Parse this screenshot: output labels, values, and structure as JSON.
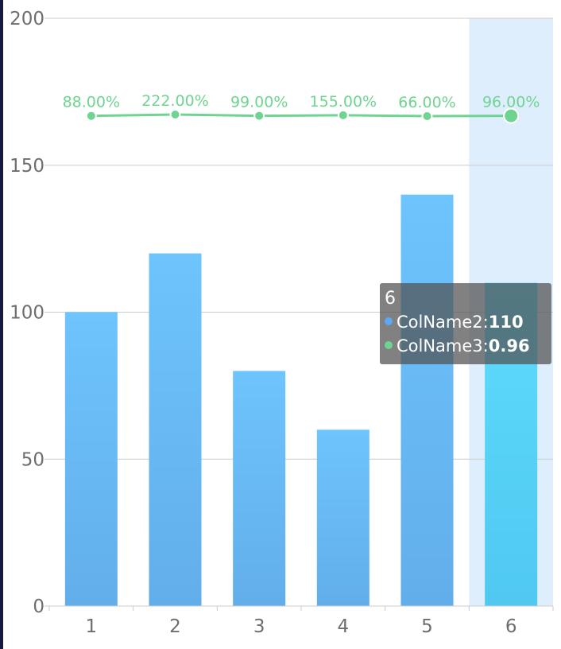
{
  "chart_data": {
    "type": "bar",
    "categories": [
      "1",
      "2",
      "3",
      "4",
      "5",
      "6"
    ],
    "ylim": [
      0,
      200
    ],
    "y_ticks": [
      "0",
      "50",
      "100",
      "150",
      "200"
    ],
    "grid": true,
    "series": [
      {
        "name": "ColName2",
        "type": "bar",
        "values": [
          100,
          120,
          80,
          60,
          140,
          110
        ]
      },
      {
        "name": "ColName3",
        "type": "line",
        "values": [
          0.88,
          2.22,
          0.99,
          1.55,
          0.66,
          0.96
        ],
        "labels": [
          "88.00%",
          "222.00%",
          "99.00%",
          "155.00%",
          "66.00%",
          "96.00%"
        ]
      }
    ],
    "highlighted_category": "6"
  },
  "colors": {
    "bar_top": "#6ec4fd",
    "bar_bottom": "#62aeea",
    "bar_highlight_top": "#5ddcfd",
    "bar_highlight_bottom": "#50c8f0",
    "highlight_band": "#deeefc",
    "line": "#6fd491",
    "grid": "#cccccc",
    "axis_text": "#6e6e6e",
    "tooltip_dot_bar": "#5aa9f2",
    "tooltip_dot_line": "#6fd491"
  },
  "tooltip": {
    "title": "6",
    "rows": [
      {
        "label": "ColName2:",
        "value": "110"
      },
      {
        "label": "ColName3:",
        "value": "0.96"
      }
    ]
  }
}
